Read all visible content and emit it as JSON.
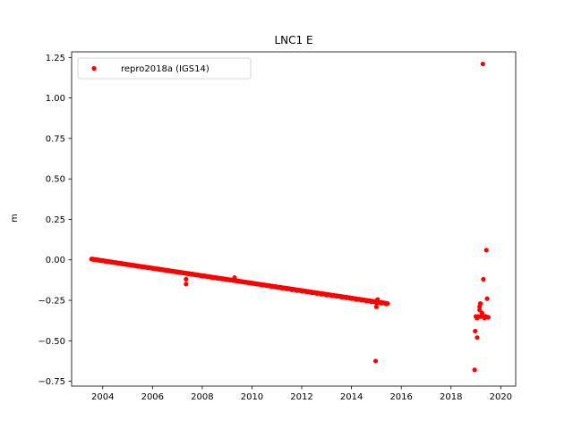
{
  "chart_data": {
    "type": "scatter",
    "title": "LNC1 E",
    "xlabel": "",
    "ylabel": "m",
    "xlim": [
      2002.75,
      2020.6
    ],
    "ylim": [
      -0.78,
      1.285
    ],
    "x_ticks": [
      2004,
      2006,
      2008,
      2010,
      2012,
      2014,
      2016,
      2018,
      2020
    ],
    "x_tick_labels": [
      "2004",
      "2006",
      "2008",
      "2010",
      "2012",
      "2014",
      "2016",
      "2018",
      "2020"
    ],
    "y_ticks": [
      1.25,
      1.0,
      0.75,
      0.5,
      0.25,
      0.0,
      -0.25,
      -0.5,
      -0.75
    ],
    "y_tick_labels": [
      "1.25",
      "1.00",
      "0.75",
      "0.50",
      "0.25",
      "0.00",
      "−0.25",
      "−0.50",
      "−0.75"
    ],
    "grid": false,
    "legend_position": "top-left",
    "series": [
      {
        "name": "repro2018a (IGS14)",
        "color": "#ff0000",
        "marker": "dot",
        "trend": {
          "x_start": 2003.55,
          "y_start": 0.005,
          "x_end": 2015.45,
          "y_end": -0.27
        },
        "points": [
          [
            2003.6,
            0.005
          ],
          [
            2003.8,
            0.0
          ],
          [
            2004.0,
            -0.005
          ],
          [
            2004.2,
            -0.01
          ],
          [
            2004.4,
            -0.015
          ],
          [
            2004.6,
            -0.02
          ],
          [
            2004.8,
            -0.025
          ],
          [
            2005.0,
            -0.03
          ],
          [
            2005.2,
            -0.035
          ],
          [
            2005.4,
            -0.04
          ],
          [
            2005.6,
            -0.043
          ],
          [
            2005.8,
            -0.047
          ],
          [
            2006.0,
            -0.052
          ],
          [
            2006.2,
            -0.057
          ],
          [
            2006.4,
            -0.062
          ],
          [
            2006.6,
            -0.066
          ],
          [
            2006.8,
            -0.07
          ],
          [
            2007.0,
            -0.075
          ],
          [
            2007.2,
            -0.08
          ],
          [
            2007.35,
            -0.12
          ],
          [
            2007.35,
            -0.15
          ],
          [
            2007.4,
            -0.085
          ],
          [
            2007.6,
            -0.09
          ],
          [
            2007.8,
            -0.095
          ],
          [
            2008.0,
            -0.1
          ],
          [
            2008.2,
            -0.105
          ],
          [
            2008.4,
            -0.11
          ],
          [
            2008.6,
            -0.114
          ],
          [
            2008.8,
            -0.118
          ],
          [
            2009.0,
            -0.122
          ],
          [
            2009.2,
            -0.126
          ],
          [
            2009.3,
            -0.11
          ],
          [
            2009.4,
            -0.13
          ],
          [
            2009.6,
            -0.135
          ],
          [
            2009.8,
            -0.14
          ],
          [
            2010.0,
            -0.145
          ],
          [
            2010.2,
            -0.15
          ],
          [
            2010.4,
            -0.155
          ],
          [
            2010.6,
            -0.16
          ],
          [
            2010.8,
            -0.165
          ],
          [
            2011.0,
            -0.17
          ],
          [
            2011.2,
            -0.175
          ],
          [
            2011.4,
            -0.18
          ],
          [
            2011.6,
            -0.185
          ],
          [
            2011.8,
            -0.19
          ],
          [
            2012.0,
            -0.194
          ],
          [
            2012.2,
            -0.198
          ],
          [
            2012.4,
            -0.203
          ],
          [
            2012.6,
            -0.208
          ],
          [
            2012.8,
            -0.213
          ],
          [
            2013.0,
            -0.218
          ],
          [
            2013.2,
            -0.222
          ],
          [
            2013.4,
            -0.226
          ],
          [
            2013.6,
            -0.23
          ],
          [
            2013.8,
            -0.235
          ],
          [
            2014.0,
            -0.24
          ],
          [
            2014.2,
            -0.245
          ],
          [
            2014.4,
            -0.25
          ],
          [
            2014.6,
            -0.255
          ],
          [
            2014.8,
            -0.26
          ],
          [
            2015.0,
            -0.265
          ],
          [
            2015.0,
            -0.29
          ],
          [
            2015.05,
            -0.245
          ],
          [
            2015.2,
            -0.268
          ],
          [
            2015.4,
            -0.272
          ],
          [
            2014.97,
            -0.625
          ],
          [
            2018.95,
            -0.68
          ],
          [
            2018.97,
            -0.44
          ],
          [
            2019.05,
            -0.48
          ],
          [
            2019.0,
            -0.35
          ],
          [
            2019.05,
            -0.36
          ],
          [
            2019.1,
            -0.35
          ],
          [
            2019.15,
            -0.31
          ],
          [
            2019.15,
            -0.29
          ],
          [
            2019.18,
            -0.27
          ],
          [
            2019.2,
            -0.35
          ],
          [
            2019.25,
            -0.33
          ],
          [
            2019.3,
            -0.12
          ],
          [
            2019.32,
            -0.35
          ],
          [
            2019.35,
            -0.36
          ],
          [
            2019.4,
            -0.35
          ],
          [
            2019.42,
            0.06
          ],
          [
            2019.45,
            -0.24
          ],
          [
            2019.5,
            -0.355
          ],
          [
            2019.28,
            1.21
          ]
        ]
      }
    ]
  }
}
